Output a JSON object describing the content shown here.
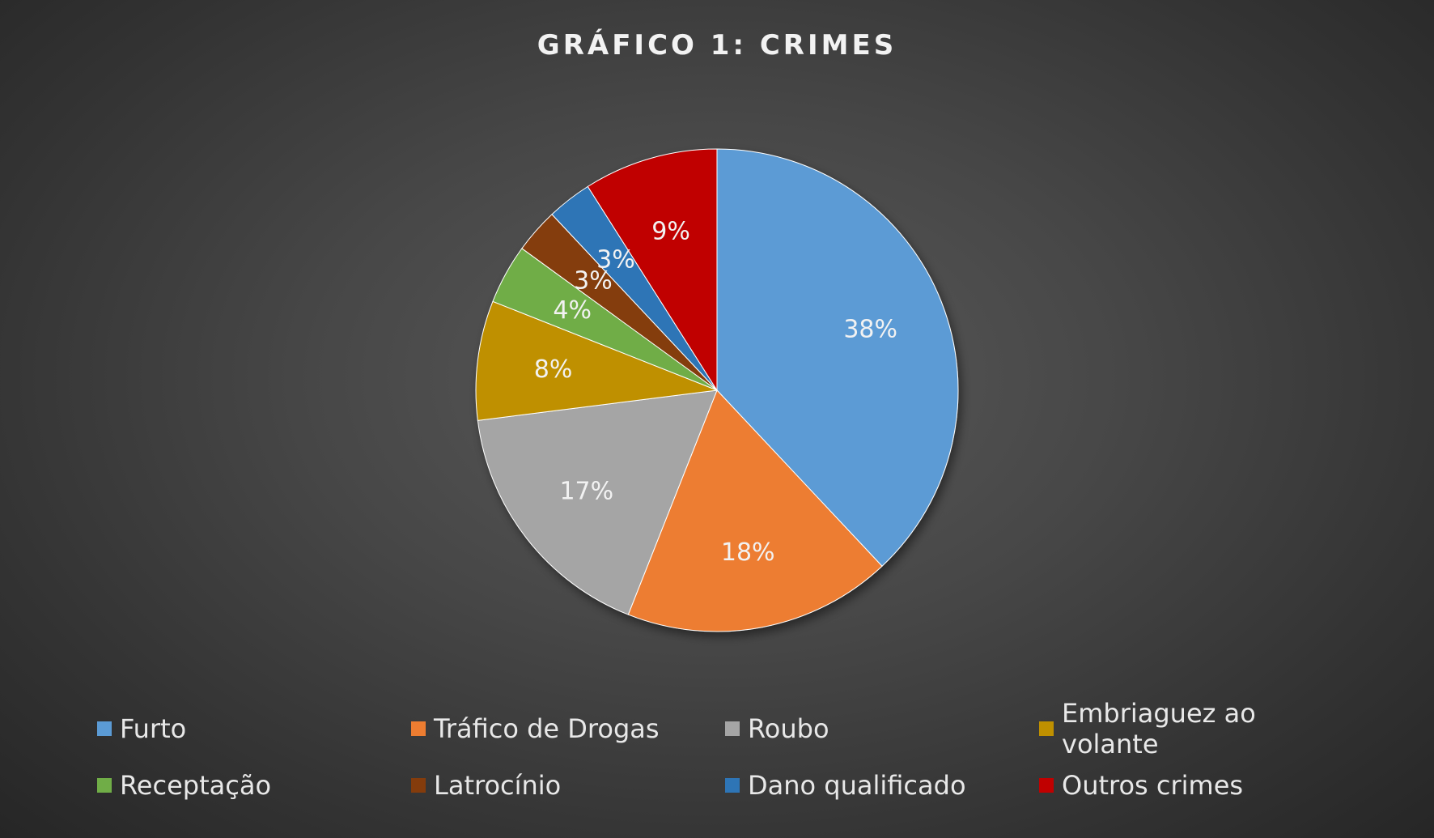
{
  "chart_data": {
    "type": "pie",
    "title": "GRÁFICO 1: CRIMES",
    "slices": [
      {
        "label": "Furto",
        "value": 38,
        "value_label": "38%",
        "color": "#5b9bd5"
      },
      {
        "label": "Tráfico de Drogas",
        "value": 18,
        "value_label": "18%",
        "color": "#ed7d31"
      },
      {
        "label": "Roubo",
        "value": 17,
        "value_label": "17%",
        "color": "#a5a5a5"
      },
      {
        "label": "Embriaguez ao volante",
        "value": 8,
        "value_label": "8%",
        "color": "#bf9000"
      },
      {
        "label": "Receptação",
        "value": 4,
        "value_label": "4%",
        "color": "#70ad47"
      },
      {
        "label": "Latrocínio",
        "value": 3,
        "value_label": "3%",
        "color": "#843c0c"
      },
      {
        "label": "Dano qualificado",
        "value": 3,
        "value_label": "3%",
        "color": "#2e75b6"
      },
      {
        "label": "Outros crimes",
        "value": 9,
        "value_label": "9%",
        "color": "#c00000"
      }
    ],
    "legend_position": "bottom",
    "start_angle": "12 o'clock, clockwise"
  }
}
